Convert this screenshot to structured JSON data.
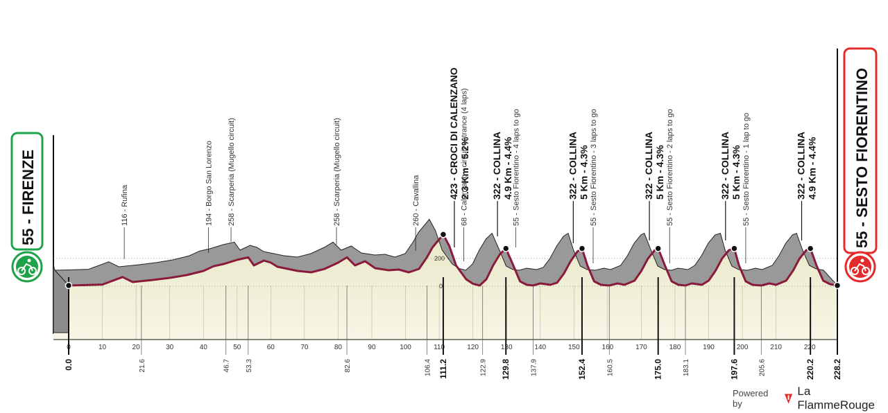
{
  "start": {
    "altitude": "55",
    "name": "FIRENZE",
    "label": "55 - FIRENZE",
    "color": "#1fa34a"
  },
  "finish": {
    "altitude": "55",
    "name": "SESTO FIORENTINO",
    "label": "55 - SESTO FIORENTINO",
    "color": "#e32b2b"
  },
  "brand": {
    "powered_by": "Powered by",
    "name": "La FlammeRouge"
  },
  "colors": {
    "profile_fill": "#999999",
    "route_line": "#8a1a3a",
    "ground": "#f7f6e6",
    "ground_top": "#e9e8c8"
  },
  "chart_data": {
    "type": "area",
    "x_ticks": [
      0,
      10,
      20,
      30,
      40,
      50,
      60,
      70,
      80,
      90,
      100,
      110,
      120,
      130,
      140,
      150,
      160,
      170,
      180,
      190,
      200,
      210,
      220
    ],
    "y_ticks": [
      0,
      200
    ],
    "xlim": [
      0,
      228.2
    ],
    "profile": [
      [
        0,
        55
      ],
      [
        5,
        58
      ],
      [
        10,
        62
      ],
      [
        16,
        116
      ],
      [
        19,
        80
      ],
      [
        25,
        95
      ],
      [
        30,
        110
      ],
      [
        35,
        130
      ],
      [
        40,
        160
      ],
      [
        43,
        194
      ],
      [
        46,
        210
      ],
      [
        50,
        240
      ],
      [
        53.3,
        258
      ],
      [
        55,
        200
      ],
      [
        58,
        235
      ],
      [
        60,
        220
      ],
      [
        62,
        190
      ],
      [
        65,
        175
      ],
      [
        68,
        160
      ],
      [
        72,
        150
      ],
      [
        76,
        175
      ],
      [
        80,
        220
      ],
      [
        82.6,
        258
      ],
      [
        85,
        200
      ],
      [
        88,
        230
      ],
      [
        91,
        180
      ],
      [
        95,
        165
      ],
      [
        98,
        170
      ],
      [
        101,
        150
      ],
      [
        104,
        175
      ],
      [
        106.4,
        260
      ],
      [
        108,
        330
      ],
      [
        111.2,
        423
      ],
      [
        113,
        340
      ],
      [
        115,
        200
      ],
      [
        118,
        100
      ],
      [
        120,
        68
      ],
      [
        122,
        55
      ],
      [
        124,
        100
      ],
      [
        126,
        200
      ],
      [
        128,
        280
      ],
      [
        129.8,
        322
      ],
      [
        132,
        200
      ],
      [
        134,
        85
      ],
      [
        136,
        60
      ],
      [
        137.9,
        55
      ],
      [
        140,
        70
      ],
      [
        143,
        60
      ],
      [
        145,
        75
      ],
      [
        147,
        140
      ],
      [
        149,
        230
      ],
      [
        151,
        300
      ],
      [
        152.4,
        322
      ],
      [
        154,
        200
      ],
      [
        156,
        85
      ],
      [
        158,
        60
      ],
      [
        160.5,
        55
      ],
      [
        163,
        70
      ],
      [
        165,
        60
      ],
      [
        168,
        90
      ],
      [
        170,
        160
      ],
      [
        172,
        250
      ],
      [
        174,
        310
      ],
      [
        175.0,
        322
      ],
      [
        177,
        200
      ],
      [
        179,
        85
      ],
      [
        181,
        60
      ],
      [
        183.1,
        55
      ],
      [
        185,
        70
      ],
      [
        188,
        60
      ],
      [
        190,
        90
      ],
      [
        192,
        160
      ],
      [
        194,
        250
      ],
      [
        196,
        310
      ],
      [
        197.6,
        322
      ],
      [
        199,
        200
      ],
      [
        201,
        85
      ],
      [
        203,
        60
      ],
      [
        205.6,
        55
      ],
      [
        208,
        70
      ],
      [
        210,
        60
      ],
      [
        213,
        90
      ],
      [
        215,
        160
      ],
      [
        217,
        250
      ],
      [
        219,
        310
      ],
      [
        220.2,
        322
      ],
      [
        222,
        200
      ],
      [
        224,
        90
      ],
      [
        226,
        65
      ],
      [
        228.2,
        55
      ]
    ],
    "km_markers": [
      "0.0",
      "21.6",
      "46.7",
      "53.3",
      "82.6",
      "106.4",
      "111.2",
      "122.9",
      "129.8",
      "137.9",
      "152.4",
      "160.5",
      "175.0",
      "183.1",
      "197.6",
      "205.6",
      "220.2",
      "228.2"
    ],
    "km_values": [
      0.0,
      21.6,
      46.7,
      53.3,
      82.6,
      106.4,
      111.2,
      122.9,
      129.8,
      137.9,
      152.4,
      160.5,
      175.0,
      183.1,
      197.6,
      205.6,
      220.2,
      228.2
    ],
    "bold_markers": [
      0.0,
      111.2,
      129.8,
      152.4,
      175.0,
      197.6,
      220.2,
      228.2
    ],
    "annotations": [
      {
        "km": 16.5,
        "label": "116 - Rufina",
        "bold": false
      },
      {
        "km": 41.5,
        "label": "194 - Borgo San Lorenzo",
        "bold": false
      },
      {
        "km": 48.2,
        "label": "258 - Scarperia (Mugello circuit)",
        "bold": false
      },
      {
        "km": 79.5,
        "label": "258 - Scarperia (Mugello circuit)",
        "bold": false
      },
      {
        "km": 103,
        "label": "260 - Cavallina",
        "bold": false
      },
      {
        "km": 114.5,
        "label": "423 - CROCI DI CALENZANO",
        "label2": "2.3 Km - 5.2%",
        "bold": true
      },
      {
        "km": 117.3,
        "label": "68 - Calenzano - circuit entrance (4 laps)",
        "bold": false
      },
      {
        "km": 127.3,
        "label": "322 - COLLINA",
        "label2": "4.9 Km - 4.4%",
        "bold": true
      },
      {
        "km": 132.7,
        "label": "55 - Sesto Fiorentino - 4 laps to go",
        "bold": false
      },
      {
        "km": 149.8,
        "label": "322 - COLLINA",
        "label2": "5 Km - 4.3%",
        "bold": true
      },
      {
        "km": 155.7,
        "label": "55 - Sesto Fiorentino - 3 laps to go",
        "bold": false
      },
      {
        "km": 172.4,
        "label": "322 - COLLINA",
        "label2": "5 Km - 4.3%",
        "bold": true
      },
      {
        "km": 178.4,
        "label": "55 - Sesto Fiorentino - 2 laps to go",
        "bold": false
      },
      {
        "km": 195.0,
        "label": "322 - COLLINA",
        "label2": "5 Km - 4.3%",
        "bold": true
      },
      {
        "km": 201.0,
        "label": "55 - Sesto Fiorentino - 1 lap to go",
        "bold": false
      },
      {
        "km": 217.6,
        "label": "322 - COLLINA",
        "label2": "4.9 Km - 4.4%",
        "bold": true
      }
    ]
  }
}
